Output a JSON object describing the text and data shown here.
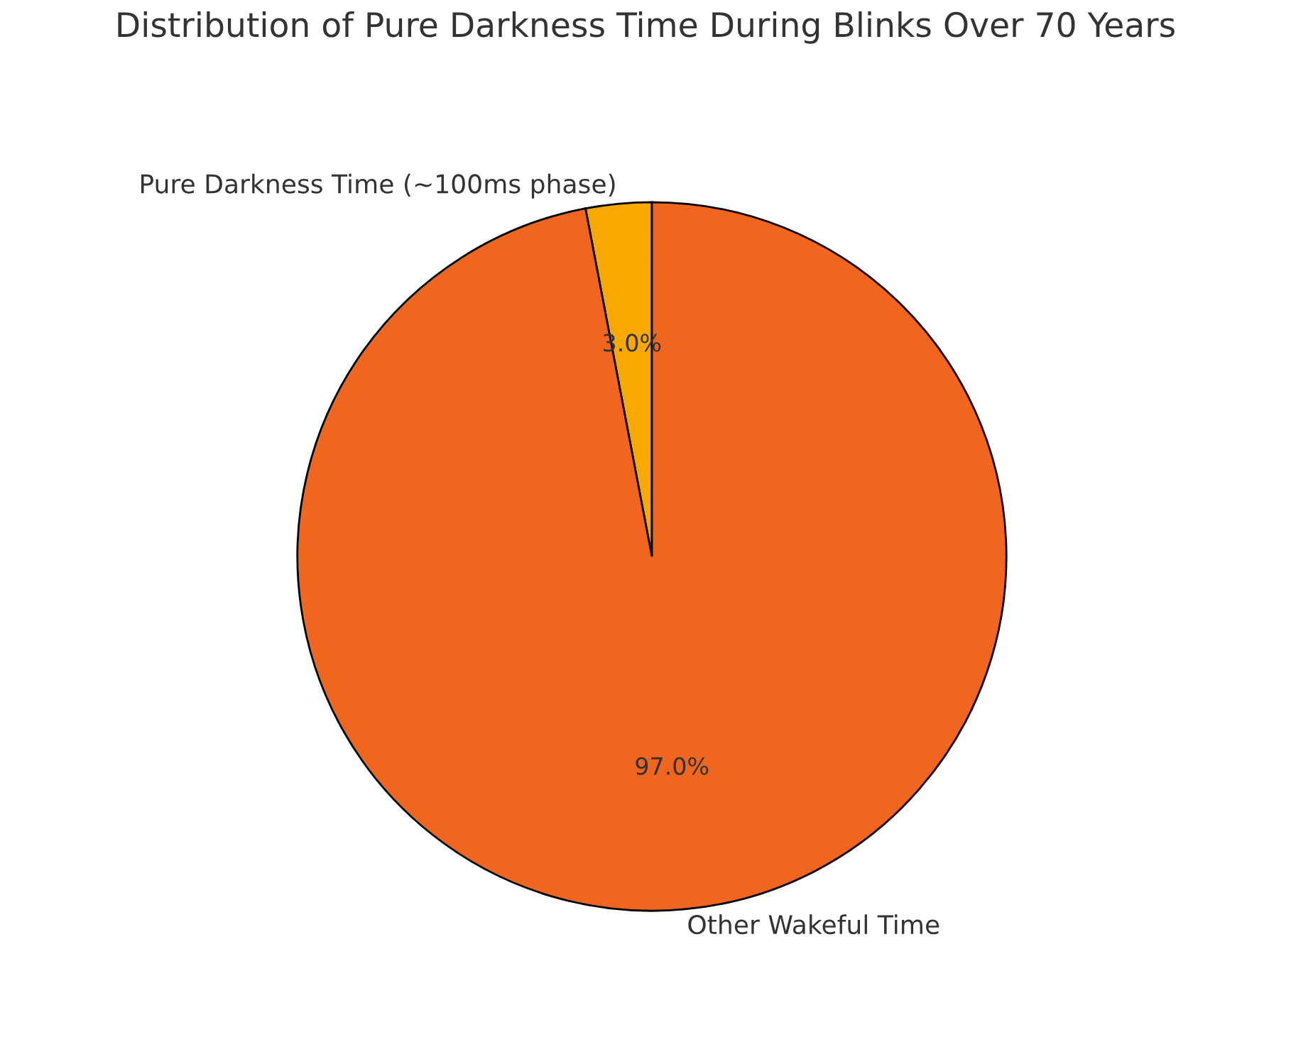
{
  "chart_data": {
    "type": "pie",
    "title": "Distribution of Pure Darkness Time During Blinks Over 70 Years",
    "categories": [
      "Pure Darkness Time (~100ms phase)",
      "Other Wakeful Time"
    ],
    "values": [
      3.0,
      97.0
    ],
    "colors": [
      "#f9a800",
      "#f0661e"
    ],
    "value_labels": [
      "3.0%",
      "97.0%"
    ]
  }
}
